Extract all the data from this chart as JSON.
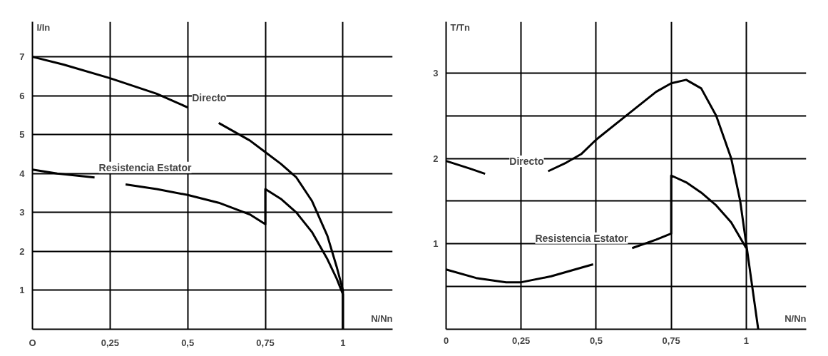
{
  "chart_data": [
    {
      "type": "line",
      "xlabel": "N/Nn",
      "ylabel": "I/In",
      "xlim": [
        0,
        1.16
      ],
      "ylim": [
        0,
        7.9
      ],
      "xticks": [
        {
          "value": 0,
          "label": "O"
        },
        {
          "value": 0.25,
          "label": "0,25"
        },
        {
          "value": 0.5,
          "label": "0,5"
        },
        {
          "value": 0.75,
          "label": "0,75"
        },
        1
      ],
      "yticks": [
        1,
        2,
        3,
        4,
        5,
        6,
        7
      ],
      "grid": true,
      "color": "#000000",
      "series": [
        {
          "name": "Directo",
          "x": [
            0,
            0.1,
            0.25,
            0.4,
            0.5,
            0.55,
            0.6,
            0.7,
            0.75,
            0.8,
            0.85,
            0.9,
            0.95,
            0.98,
            1.0,
            1.0
          ],
          "values": [
            7,
            6.8,
            6.45,
            6.05,
            5.7,
            null,
            5.3,
            4.85,
            4.55,
            4.25,
            3.9,
            3.3,
            2.4,
            1.6,
            1.0,
            0
          ]
        },
        {
          "name": "Resistencia Estator",
          "x": [
            0,
            0.08,
            0.2,
            0.24,
            0.3,
            0.4,
            0.5,
            0.6,
            0.7,
            0.75,
            0.75,
            0.8,
            0.85,
            0.9,
            0.95,
            0.98,
            1.0,
            1.0
          ],
          "values": [
            4.1,
            4.0,
            3.9,
            null,
            3.72,
            3.6,
            3.45,
            3.25,
            2.95,
            2.7,
            3.6,
            3.35,
            3.0,
            2.5,
            1.8,
            1.3,
            0.9,
            0
          ]
        }
      ]
    },
    {
      "type": "line",
      "xlabel": "N/Nn",
      "ylabel": "T/Tn",
      "xlim": [
        0,
        1.2
      ],
      "ylim": [
        0,
        3.6
      ],
      "xticks": [
        {
          "value": 0,
          "label": "0"
        },
        {
          "value": 0.25,
          "label": "0,25"
        },
        {
          "value": 0.5,
          "label": "0,5"
        },
        {
          "value": 0.75,
          "label": "0,75"
        },
        1
      ],
      "yticks": [
        {
          "value": 0.5,
          "label": null
        },
        1,
        {
          "value": 1.5,
          "label": null
        },
        2,
        {
          "value": 2.5,
          "label": null
        },
        3
      ],
      "grid": true,
      "color": "#000000",
      "series": [
        {
          "name": "Directo",
          "x": [
            0,
            0.08,
            0.13,
            0.23,
            0.34,
            0.4,
            0.45,
            0.5,
            0.6,
            0.7,
            0.75,
            0.8,
            0.85,
            0.9,
            0.95,
            0.98,
            1.0,
            1.02,
            1.04
          ],
          "values": [
            1.97,
            1.88,
            1.82,
            null,
            1.85,
            1.95,
            2.05,
            2.22,
            2.5,
            2.78,
            2.88,
            2.92,
            2.82,
            2.5,
            2.0,
            1.5,
            1.0,
            0.5,
            0
          ]
        },
        {
          "name": "Resistencia Estator",
          "x": [
            0,
            0.1,
            0.2,
            0.25,
            0.35,
            0.45,
            0.49,
            0.55,
            0.62,
            0.7,
            0.75,
            0.75,
            0.8,
            0.85,
            0.9,
            0.95,
            1.0
          ],
          "values": [
            0.7,
            0.6,
            0.55,
            0.55,
            0.62,
            0.72,
            0.76,
            null,
            0.95,
            1.05,
            1.12,
            1.8,
            1.72,
            1.6,
            1.45,
            1.25,
            0.95
          ]
        }
      ]
    }
  ]
}
